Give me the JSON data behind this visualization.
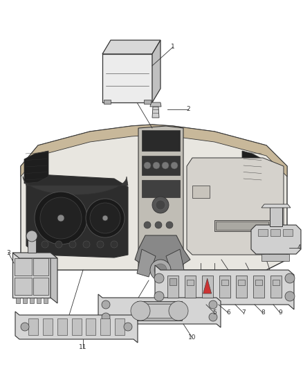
{
  "background_color": "#ffffff",
  "fig_width": 4.38,
  "fig_height": 5.33,
  "dpi": 100,
  "line_color": "#333333",
  "lw_main": 0.8,
  "lw_thin": 0.5,
  "fill_light": "#f0f0f0",
  "fill_mid": "#d8d8d8",
  "fill_dark": "#a8a8a8",
  "fill_darker": "#707070",
  "fill_black": "#1a1a1a",
  "fill_wood": "#8b7355",
  "label_fontsize": 6.5
}
